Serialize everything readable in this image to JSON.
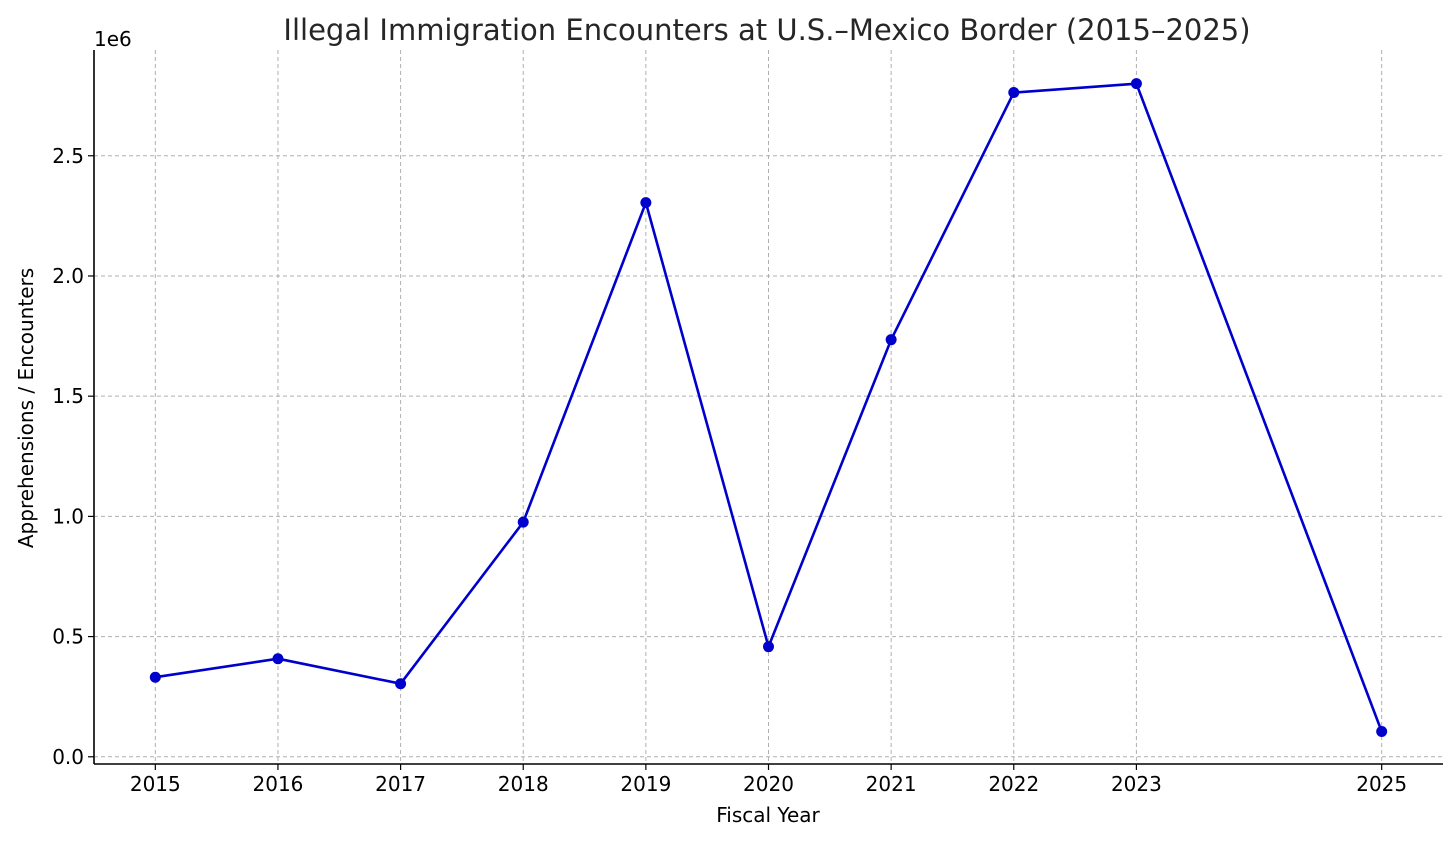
{
  "chart_data": {
    "type": "line",
    "title": "Illegal Immigration Encounters at U.S.–Mexico Border (2015–2025)",
    "xlabel": "Fiscal Year",
    "ylabel": "Apprehensions / Encounters",
    "offset_label": "1e6",
    "x": [
      2015,
      2016,
      2017,
      2018,
      2019,
      2020,
      2021,
      2022,
      2023,
      2025
    ],
    "x_tick_labels": [
      "2015",
      "2016",
      "2017",
      "2018",
      "2019",
      "2020",
      "2021",
      "2022",
      "2023",
      "2025"
    ],
    "series": [
      {
        "values": [
          0.331,
          0.408,
          0.304,
          0.976,
          2.305,
          0.458,
          1.735,
          2.763,
          2.8,
          0.105
        ],
        "color": "#0000cc",
        "marker": "circle"
      }
    ],
    "y_ticks": [
      0.0,
      0.5,
      1.0,
      1.5,
      2.0,
      2.5
    ],
    "y_tick_labels": [
      "0.0",
      "0.5",
      "1.0",
      "1.5",
      "2.0",
      "2.5"
    ],
    "ylim": [
      -0.03,
      2.94
    ],
    "xlim": [
      2014.5,
      2025.5
    ],
    "grid": true,
    "grid_style": "dashed",
    "legend": "none"
  }
}
